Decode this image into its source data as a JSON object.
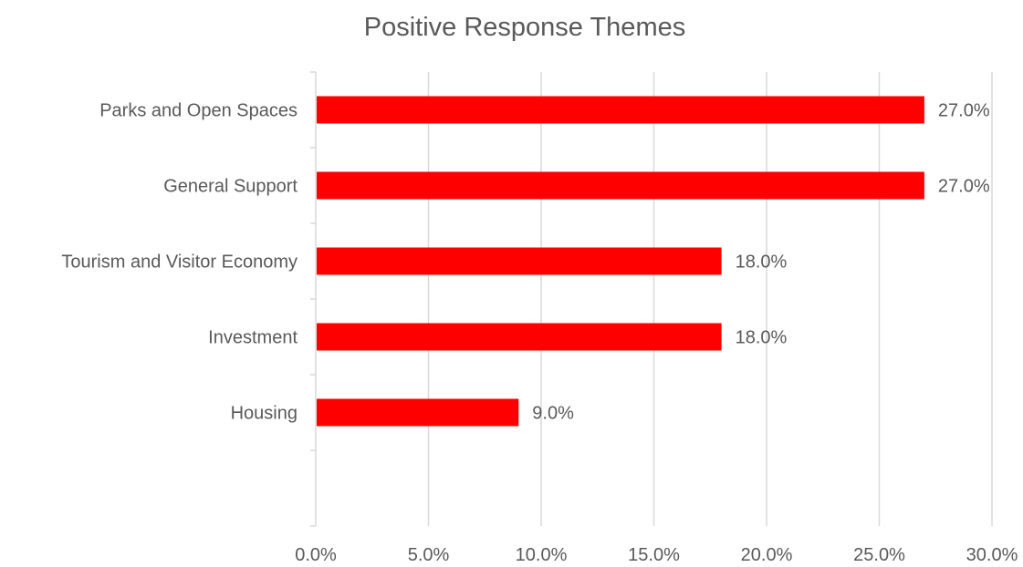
{
  "chart_data": {
    "type": "bar",
    "orientation": "horizontal",
    "title": "Positive Response Themes",
    "categories": [
      "Parks and Open Spaces",
      "General Support",
      "Tourism and Visitor Economy",
      "Investment",
      "Housing"
    ],
    "values": [
      27.0,
      27.0,
      18.0,
      18.0,
      9.0
    ],
    "value_labels": [
      "27.0%",
      "27.0%",
      "18.0%",
      "18.0%",
      "9.0%"
    ],
    "xlim": [
      0,
      30
    ],
    "x_ticks": [
      0,
      5,
      10,
      15,
      20,
      25,
      30
    ],
    "x_tick_labels": [
      "0.0%",
      "5.0%",
      "10.0%",
      "15.0%",
      "20.0%",
      "25.0%",
      "30.0%"
    ],
    "xlabel": "",
    "ylabel": "",
    "grid": "vertical",
    "legend": "none",
    "bar_color": "#ff0000",
    "grid_color": "#d9d9d9",
    "text_color": "#595959"
  }
}
